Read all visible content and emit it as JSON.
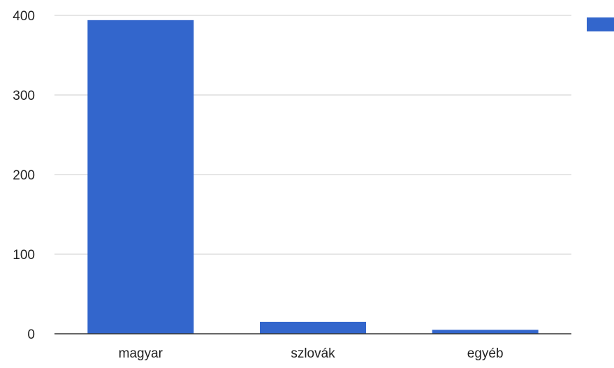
{
  "chart_data": {
    "type": "bar",
    "categories": [
      "magyar",
      "szlovák",
      "egyéb"
    ],
    "values": [
      394,
      15,
      5
    ],
    "ylim": [
      0,
      400
    ],
    "yticks": [
      0,
      100,
      200,
      300,
      400
    ],
    "grid": true,
    "legend": "top-right",
    "colors": {
      "bar": "#3366cc",
      "grid": "#cccccc",
      "axis": "#333333"
    }
  }
}
